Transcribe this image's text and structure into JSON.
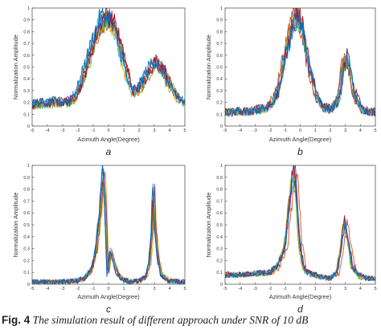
{
  "caption": {
    "label": "Fig. 4",
    "text": "The simulation result of different approach under SNR of 10 dB"
  },
  "colors": [
    "#0072bd",
    "#d95319",
    "#edb120",
    "#7e2f8e",
    "#77ac30",
    "#4dbeee",
    "#a2142f"
  ],
  "chart_data": [
    {
      "type": "line",
      "panel_label": "a",
      "xlabel": "Azimuth Angle(Degree)",
      "ylabel": "Normalization Amplitude",
      "xlim": [
        -5,
        5
      ],
      "ylim": [
        0,
        1
      ],
      "xticks": [
        "-5",
        "-4",
        "-3",
        "-2",
        "-1",
        "0",
        "1",
        "2",
        "3",
        "4",
        "5"
      ],
      "yticks": [
        "0",
        "0.1",
        "0.2",
        "0.3",
        "0.4",
        "0.5",
        "0.6",
        "0.7",
        "0.8",
        "0.9",
        "1"
      ],
      "series_count": 8,
      "x": [
        -5,
        -4.5,
        -4,
        -3.5,
        -3,
        -2.5,
        -2,
        -1.5,
        -1,
        -0.5,
        -0.25,
        0,
        0.25,
        0.5,
        1,
        1.5,
        2,
        2.5,
        3,
        3.5,
        4,
        4.5,
        5
      ],
      "values": [
        0.18,
        0.2,
        0.19,
        0.21,
        0.2,
        0.22,
        0.3,
        0.5,
        0.72,
        0.9,
        0.93,
        0.92,
        0.88,
        0.8,
        0.55,
        0.3,
        0.32,
        0.45,
        0.55,
        0.5,
        0.35,
        0.25,
        0.2
      ]
    },
    {
      "type": "line",
      "panel_label": "b",
      "xlabel": "Azimuth Angle(Degree)",
      "ylabel": "Normalization Amplitude",
      "xlim": [
        -5,
        5
      ],
      "ylim": [
        0,
        1
      ],
      "xticks": [
        "-5",
        "-4",
        "-3",
        "-2",
        "-1",
        "0",
        "1",
        "2",
        "3",
        "4",
        "5"
      ],
      "yticks": [
        "0",
        "0.1",
        "0.2",
        "0.3",
        "0.4",
        "0.5",
        "0.6",
        "0.7",
        "0.8",
        "0.9",
        "1"
      ],
      "series_count": 8,
      "x": [
        -5,
        -4.5,
        -4,
        -3.5,
        -3,
        -2.5,
        -2,
        -1.5,
        -1,
        -0.5,
        -0.25,
        0,
        0.25,
        0.5,
        1,
        1.5,
        2,
        2.5,
        2.75,
        3,
        3.25,
        3.5,
        4,
        4.5,
        5
      ],
      "values": [
        0.12,
        0.12,
        0.13,
        0.12,
        0.14,
        0.15,
        0.18,
        0.3,
        0.65,
        0.9,
        0.97,
        0.88,
        0.72,
        0.55,
        0.28,
        0.16,
        0.15,
        0.22,
        0.45,
        0.6,
        0.48,
        0.3,
        0.15,
        0.12,
        0.12
      ]
    },
    {
      "type": "line",
      "panel_label": "c",
      "xlabel": "Azimuth Angle(Degree)",
      "ylabel": "Normalization Amplitude",
      "xlim": [
        -5,
        5
      ],
      "ylim": [
        0,
        1
      ],
      "xticks": [
        "-5",
        "-4",
        "-3",
        "-2",
        "-1",
        "0",
        "1",
        "2",
        "3",
        "4",
        "5"
      ],
      "yticks": [
        "0",
        "0.1",
        "0.2",
        "0.3",
        "0.4",
        "0.5",
        "0.6",
        "0.7",
        "0.8",
        "0.9",
        "1"
      ],
      "series_count": 8,
      "x": [
        -5,
        -3,
        -2,
        -1.5,
        -1,
        -0.75,
        -0.5,
        -0.35,
        -0.25,
        -0.1,
        0,
        0.2,
        0.4,
        0.6,
        1,
        1.5,
        2,
        2.5,
        2.75,
        2.9,
        3,
        3.1,
        3.25,
        3.5,
        4,
        5
      ],
      "values": [
        0.02,
        0.02,
        0.03,
        0.05,
        0.15,
        0.3,
        0.6,
        0.9,
        0.98,
        0.45,
        0.08,
        0.3,
        0.2,
        0.1,
        0.04,
        0.02,
        0.03,
        0.06,
        0.2,
        0.45,
        0.85,
        0.5,
        0.25,
        0.08,
        0.03,
        0.02
      ]
    },
    {
      "type": "line",
      "panel_label": "d",
      "xlabel": "Azimuth Angle(Degree)",
      "ylabel": "Normalization Amplitude",
      "xlim": [
        -5,
        5
      ],
      "ylim": [
        0,
        1
      ],
      "xticks": [
        "-5",
        "-4",
        "-3",
        "-2",
        "-1",
        "0",
        "1",
        "2",
        "3",
        "4",
        "5"
      ],
      "yticks": [
        "0",
        "0.1",
        "0.2",
        "0.3",
        "0.4",
        "0.5",
        "0.6",
        "0.7",
        "0.8",
        "0.9",
        "1"
      ],
      "series_count": 8,
      "x": [
        -5,
        -4,
        -3,
        -2,
        -1.5,
        -1,
        -0.75,
        -0.5,
        -0.35,
        -0.2,
        0,
        0.25,
        0.5,
        1,
        1.5,
        2,
        2.5,
        2.75,
        3,
        3.25,
        3.5,
        4,
        4.5,
        5
      ],
      "values": [
        0.08,
        0.08,
        0.09,
        0.1,
        0.15,
        0.3,
        0.6,
        0.88,
        0.97,
        0.75,
        0.35,
        0.15,
        0.1,
        0.08,
        0.06,
        0.05,
        0.1,
        0.3,
        0.55,
        0.35,
        0.15,
        0.07,
        0.05,
        0.05
      ]
    }
  ]
}
